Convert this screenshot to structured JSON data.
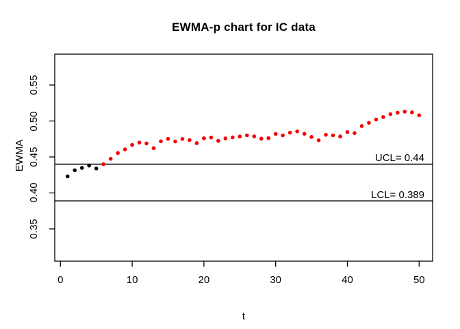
{
  "title": "EWMA-p chart for IC data",
  "chart_data": {
    "type": "scatter",
    "title": "EWMA-p chart for IC data",
    "xlabel": "t",
    "ylabel": "EWMA",
    "x_ticks": [
      0,
      10,
      20,
      30,
      40,
      50
    ],
    "y_ticks": [
      "0.35",
      "0.40",
      "0.45",
      "0.50",
      "0.55"
    ],
    "xlim": [
      -0.79,
      51.88
    ],
    "ylim": [
      0.3052,
      0.5929
    ],
    "grid": false,
    "legend": "none",
    "point_style": "filled-circle",
    "series": [
      {
        "name": "EWMA below UCL (black points)",
        "color": "#000000",
        "x": [
          1,
          2,
          3,
          4,
          5
        ],
        "values": [
          0.423,
          0.4315,
          0.4348,
          0.438,
          0.434
        ]
      },
      {
        "name": "EWMA signal (red points)",
        "color": "#f40000",
        "x": [
          6,
          7,
          8,
          9,
          10,
          11,
          12,
          13,
          14,
          15,
          16,
          17,
          18,
          19,
          20,
          21,
          22,
          23,
          24,
          25,
          26,
          27,
          28,
          29,
          30,
          31,
          32,
          33,
          34,
          35,
          36,
          37,
          38,
          39,
          40,
          41,
          42,
          43,
          44,
          45,
          46,
          47,
          48,
          49,
          50
        ],
        "values": [
          0.44,
          0.4474,
          0.4555,
          0.4605,
          0.4668,
          0.47,
          0.4688,
          0.4622,
          0.4718,
          0.4752,
          0.4715,
          0.475,
          0.4735,
          0.4692,
          0.476,
          0.477,
          0.4724,
          0.4758,
          0.4772,
          0.4785,
          0.48,
          0.4786,
          0.4755,
          0.4762,
          0.482,
          0.48,
          0.4838,
          0.4855,
          0.4822,
          0.4778,
          0.4732,
          0.4808,
          0.48,
          0.4785,
          0.4845,
          0.4832,
          0.493,
          0.4975,
          0.502,
          0.5055,
          0.5095,
          0.5115,
          0.513,
          0.512,
          0.508
        ]
      }
    ],
    "reference_lines": [
      {
        "id": "ucl",
        "label": "UCL= 0.44",
        "value": 0.44
      },
      {
        "id": "lcl",
        "label": "LCL= 0.389",
        "value": 0.389
      }
    ],
    "axis_color": "#000000",
    "background_color": "#ffffff"
  }
}
